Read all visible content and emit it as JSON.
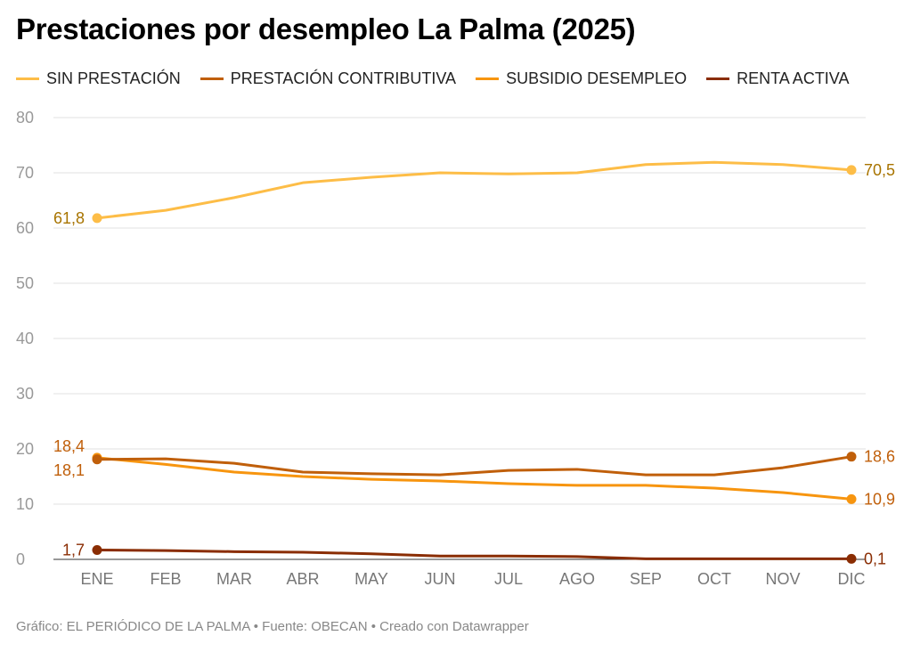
{
  "chart_data": {
    "type": "line",
    "title": "Prestaciones por desempleo La Palma (2025)",
    "categories": [
      "ENE",
      "FEB",
      "MAR",
      "ABR",
      "MAY",
      "JUN",
      "JUL",
      "AGO",
      "SEP",
      "OCT",
      "NOV",
      "DIC"
    ],
    "ylim": [
      0,
      80
    ],
    "yticks": [
      0,
      10,
      20,
      30,
      40,
      50,
      60,
      70,
      80
    ],
    "grid": true,
    "legend_position": "top-left",
    "series": [
      {
        "name": "SIN PRESTACIÓN",
        "color": "#fdbd47",
        "label_color": "#a87400",
        "values": [
          61.8,
          63.2,
          65.5,
          68.2,
          69.2,
          70.0,
          69.8,
          70.0,
          71.5,
          71.9,
          71.5,
          70.5
        ],
        "start_label": "61,8",
        "end_label": "70,5"
      },
      {
        "name": "PRESTACIÓN CONTRIBUTIVA",
        "color": "#c05f0a",
        "label_color": "#c05f0a",
        "values": [
          18.1,
          18.2,
          17.4,
          15.8,
          15.5,
          15.3,
          16.1,
          16.3,
          15.3,
          15.3,
          16.6,
          18.6
        ],
        "start_label": "18,1",
        "end_label": "18,6"
      },
      {
        "name": "SUBSIDIO DESEMPLEO",
        "color": "#f7950f",
        "label_color": "#c05f0a",
        "values": [
          18.4,
          17.2,
          15.8,
          15.0,
          14.5,
          14.2,
          13.7,
          13.4,
          13.4,
          12.9,
          12.1,
          10.9
        ],
        "start_label": "18,4",
        "end_label": "10,9"
      },
      {
        "name": "RENTA ACTIVA",
        "color": "#8a2d03",
        "label_color": "#8a2d03",
        "values": [
          1.7,
          1.6,
          1.4,
          1.3,
          1.0,
          0.6,
          0.6,
          0.5,
          0.1,
          0.1,
          0.1,
          0.1
        ],
        "start_label": "1,7",
        "end_label": "0,1"
      }
    ]
  },
  "footer": "Gráfico: EL PERIÓDICO DE LA PALMA • Fuente: OBECAN • Creado con Datawrapper"
}
